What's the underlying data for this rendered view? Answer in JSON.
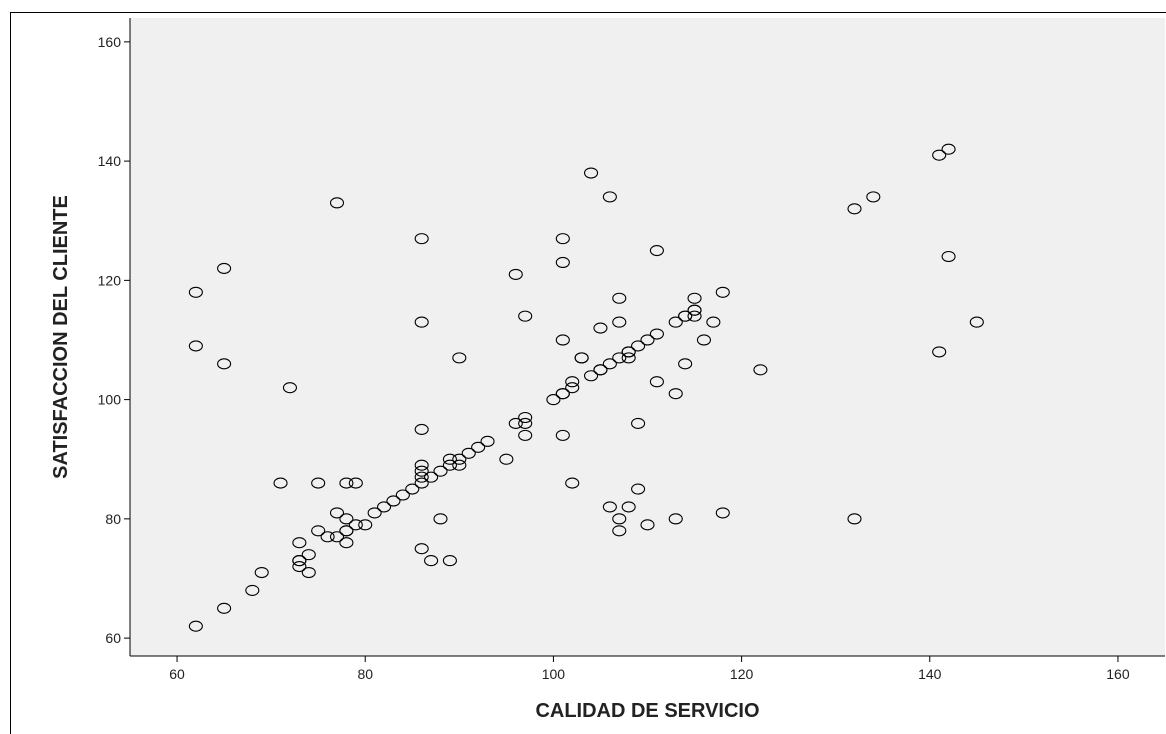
{
  "chart_data": {
    "type": "scatter",
    "title": "",
    "xlabel": "CALIDAD DE SERVICIO",
    "ylabel": "SATISFACCION DEL CLIENTE",
    "xlim": [
      55,
      165
    ],
    "ylim": [
      57,
      164
    ],
    "xticks": [
      60,
      80,
      100,
      120,
      140,
      160
    ],
    "yticks": [
      60,
      80,
      100,
      120,
      140,
      160
    ],
    "grid": false,
    "colors": {
      "plot_bg": "#f0f0f0",
      "marker": "#000000",
      "axis": "#000000"
    },
    "marker": "open-circle",
    "x": [
      62,
      62,
      62,
      65,
      65,
      65,
      68,
      69,
      71,
      72,
      73,
      73,
      73,
      73,
      74,
      74,
      75,
      75,
      76,
      77,
      77,
      77,
      78,
      78,
      78,
      78,
      78,
      79,
      79,
      80,
      81,
      82,
      83,
      84,
      85,
      86,
      86,
      86,
      86,
      86,
      86,
      86,
      86,
      87,
      87,
      88,
      88,
      89,
      89,
      89,
      90,
      90,
      90,
      91,
      92,
      93,
      95,
      96,
      96,
      97,
      97,
      97,
      97,
      100,
      101,
      101,
      101,
      101,
      101,
      101,
      102,
      102,
      102,
      103,
      103,
      104,
      104,
      105,
      105,
      105,
      106,
      106,
      106,
      107,
      107,
      107,
      107,
      107,
      108,
      108,
      108,
      108,
      109,
      109,
      109,
      110,
      110,
      111,
      111,
      111,
      113,
      113,
      113,
      114,
      114,
      114,
      115,
      115,
      115,
      115,
      116,
      117,
      118,
      118,
      122,
      132,
      132,
      134,
      141,
      141,
      142,
      142,
      145
    ],
    "y": [
      62,
      109,
      118,
      65,
      106,
      122,
      68,
      71,
      86,
      102,
      72,
      73,
      76,
      73,
      71,
      74,
      78,
      86,
      77,
      77,
      81,
      133,
      76,
      78,
      80,
      86,
      78,
      86,
      79,
      79,
      81,
      82,
      83,
      84,
      85,
      75,
      86,
      87,
      88,
      89,
      95,
      113,
      127,
      87,
      73,
      80,
      88,
      73,
      89,
      90,
      89,
      90,
      107,
      91,
      92,
      93,
      90,
      96,
      121,
      94,
      96,
      97,
      114,
      100,
      94,
      101,
      110,
      123,
      127,
      101,
      86,
      102,
      103,
      107,
      107,
      104,
      138,
      105,
      112,
      105,
      106,
      82,
      134,
      78,
      80,
      107,
      113,
      117,
      82,
      107,
      108,
      108,
      85,
      96,
      109,
      79,
      110,
      103,
      111,
      125,
      101,
      80,
      113,
      106,
      114,
      114,
      114,
      115,
      115,
      117,
      110,
      113,
      118,
      81,
      105,
      80,
      132,
      134,
      108,
      141,
      124,
      142,
      113
    ]
  }
}
